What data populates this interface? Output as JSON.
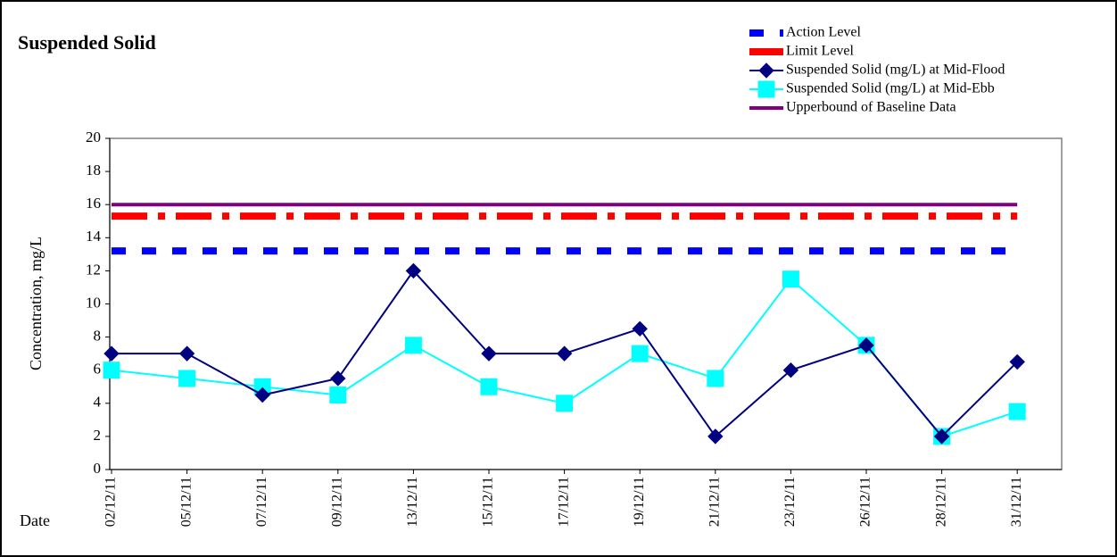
{
  "chart_data": {
    "type": "line",
    "title": "Suspended Solid",
    "ylabel": "Concentration, mg/L",
    "xlabel": "Date",
    "categories": [
      "02/12/11",
      "05/12/11",
      "07/12/11",
      "09/12/11",
      "13/12/11",
      "15/12/11",
      "17/12/11",
      "19/12/11",
      "21/12/11",
      "23/12/11",
      "26/12/11",
      "28/12/11",
      "31/12/11"
    ],
    "ylim": [
      0,
      20
    ],
    "yticks": [
      0,
      2,
      4,
      6,
      8,
      10,
      12,
      14,
      16,
      18,
      20
    ],
    "series": [
      {
        "name": "Action Level",
        "color": "#0000ff",
        "line_style": "dashed",
        "marker": null,
        "values": [
          13.2,
          13.2,
          13.2,
          13.2,
          13.2,
          13.2,
          13.2,
          13.2,
          13.2,
          13.2,
          13.2,
          13.2,
          13.2
        ]
      },
      {
        "name": "Limit Level",
        "color": "#ff0000",
        "line_style": "dash-dot",
        "marker": null,
        "values": [
          15.3,
          15.3,
          15.3,
          15.3,
          15.3,
          15.3,
          15.3,
          15.3,
          15.3,
          15.3,
          15.3,
          15.3,
          15.3
        ]
      },
      {
        "name": "Suspended Solid (mg/L) at Mid-Flood",
        "color": "#000080",
        "line_style": "solid",
        "marker": "diamond",
        "values": [
          7,
          7,
          4.5,
          5.5,
          12,
          7,
          7,
          8.5,
          2,
          6,
          7.5,
          2,
          6.5
        ]
      },
      {
        "name": "Suspended Solid (mg/L) at Mid-Ebb",
        "color": "#00ffff",
        "line_style": "solid",
        "marker": "square",
        "values": [
          6,
          5.5,
          5,
          4.5,
          7.5,
          5,
          4,
          7,
          5.5,
          11.5,
          7.5,
          2,
          3.5
        ]
      },
      {
        "name": "Upperbound of Baseline Data",
        "color": "#800080",
        "line_style": "solid",
        "marker": null,
        "values": [
          16,
          16,
          16,
          16,
          16,
          16,
          16,
          16,
          16,
          16,
          16,
          16,
          16
        ]
      }
    ]
  }
}
